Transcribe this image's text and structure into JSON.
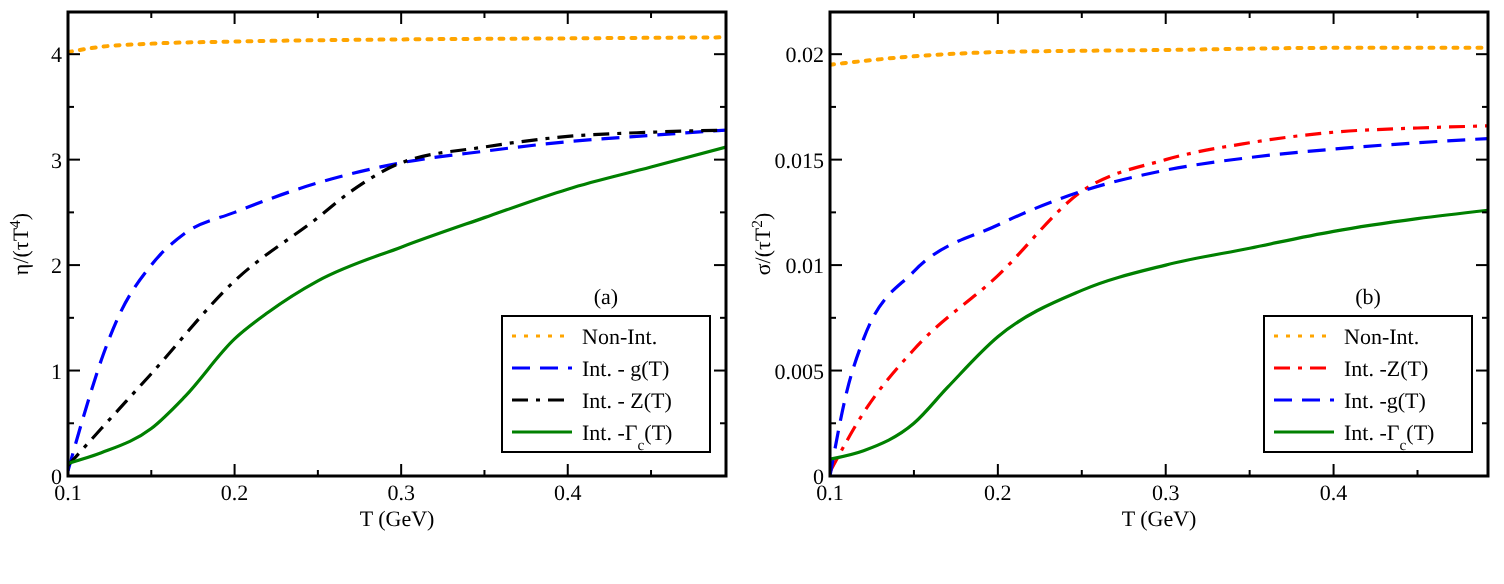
{
  "chart_data": [
    {
      "type": "line",
      "xlabel": "T (GeV)",
      "ylabel": "η/(τT$^{4}$)",
      "annotations": [
        "(a)"
      ],
      "legend": "bottom right",
      "grid": false,
      "xlim": [
        0.1,
        0.495
      ],
      "ylim": [
        0,
        4.4
      ],
      "xticks": [
        0.1,
        {
          "value": 0.15,
          "label": null
        },
        0.2,
        {
          "value": 0.25,
          "label": null
        },
        0.3,
        {
          "value": 0.35,
          "label": null
        },
        0.4,
        {
          "value": 0.45,
          "label": null
        }
      ],
      "yticks": [
        0,
        {
          "value": 0.5,
          "label": null
        },
        1,
        {
          "value": 1.5,
          "label": null
        },
        2,
        {
          "value": 2.5,
          "label": null
        },
        3,
        {
          "value": 3.5,
          "label": null
        },
        4
      ],
      "series": [
        {
          "name": "Non-Int.",
          "color": "#ffa500",
          "line_style": "dotted",
          "x": [
            0.1,
            0.12,
            0.15,
            0.2,
            0.3,
            0.4,
            0.495
          ],
          "values": [
            4.02,
            4.07,
            4.1,
            4.12,
            4.14,
            4.15,
            4.16
          ]
        },
        {
          "name": "Int. - g(T)",
          "color": "#0000ff",
          "line_style": "dashed",
          "x": [
            0.1,
            0.11,
            0.12,
            0.13,
            0.15,
            0.17,
            0.2,
            0.25,
            0.3,
            0.35,
            0.4,
            0.45,
            0.495
          ],
          "values": [
            0.05,
            0.6,
            1.1,
            1.5,
            2.0,
            2.3,
            2.5,
            2.78,
            2.97,
            3.08,
            3.17,
            3.23,
            3.28
          ]
        },
        {
          "name": "Int. - Z(T)",
          "color": "#000000",
          "line_style": "dashdot",
          "x": [
            0.1,
            0.12,
            0.15,
            0.2,
            0.25,
            0.27,
            0.3,
            0.35,
            0.4,
            0.45,
            0.495
          ],
          "values": [
            0.1,
            0.45,
            0.97,
            1.85,
            2.45,
            2.7,
            2.97,
            3.12,
            3.22,
            3.26,
            3.28
          ]
        },
        {
          "name": "Int. -Γ$_{c}$(T)",
          "color": "#008000",
          "line_style": "solid",
          "x": [
            0.1,
            0.12,
            0.15,
            0.17,
            0.2,
            0.22,
            0.25,
            0.3,
            0.35,
            0.4,
            0.45,
            0.495
          ],
          "values": [
            0.12,
            0.22,
            0.45,
            0.75,
            1.3,
            1.55,
            1.85,
            2.17,
            2.45,
            2.72,
            2.93,
            3.12
          ]
        }
      ]
    },
    {
      "type": "line",
      "xlabel": "T (GeV)",
      "ylabel": "σ/(τT$^{2}$)",
      "annotations": [
        "(b)"
      ],
      "legend": "bottom right",
      "grid": false,
      "xlim": [
        0.1,
        0.492
      ],
      "ylim": [
        0,
        0.022
      ],
      "xticks": [
        0.1,
        {
          "value": 0.15,
          "label": null
        },
        0.2,
        {
          "value": 0.25,
          "label": null
        },
        0.3,
        {
          "value": 0.35,
          "label": null
        },
        0.4,
        {
          "value": 0.45,
          "label": null
        }
      ],
      "yticks": [
        0,
        {
          "value": 0.0025,
          "label": null
        },
        0.005,
        {
          "value": 0.0075,
          "label": null
        },
        0.01,
        {
          "value": 0.0125,
          "label": null
        },
        0.015,
        {
          "value": 0.0175,
          "label": null
        },
        0.02
      ],
      "series": [
        {
          "name": "Non-Int.",
          "color": "#ffa500",
          "line_style": "dotted",
          "x": [
            0.1,
            0.15,
            0.2,
            0.3,
            0.4,
            0.492
          ],
          "values": [
            0.0195,
            0.0199,
            0.0201,
            0.0202,
            0.0203,
            0.0203
          ]
        },
        {
          "name": "Int. -Z(T)",
          "color": "#ff0000",
          "line_style": "dashdot",
          "x": [
            0.1,
            0.12,
            0.15,
            0.2,
            0.25,
            0.3,
            0.35,
            0.4,
            0.45,
            0.492
          ],
          "values": [
            0.0002,
            0.003,
            0.006,
            0.0095,
            0.0135,
            0.015,
            0.0158,
            0.0163,
            0.0165,
            0.0166
          ]
        },
        {
          "name": "Int. -g(T)",
          "color": "#0000ff",
          "line_style": "dashed",
          "x": [
            0.1,
            0.11,
            0.12,
            0.15,
            0.2,
            0.25,
            0.3,
            0.35,
            0.4,
            0.45,
            0.492
          ],
          "values": [
            0,
            0.004,
            0.0065,
            0.0097,
            0.0119,
            0.0135,
            0.0145,
            0.0151,
            0.0155,
            0.0158,
            0.016
          ]
        },
        {
          "name": "Int. -Γ$_{c}$(T)",
          "color": "#008000",
          "line_style": "solid",
          "x": [
            0.1,
            0.12,
            0.15,
            0.17,
            0.2,
            0.25,
            0.3,
            0.35,
            0.4,
            0.45,
            0.492
          ],
          "values": [
            0.0008,
            0.0012,
            0.0025,
            0.0042,
            0.0066,
            0.0088,
            0.01,
            0.0108,
            0.0116,
            0.0122,
            0.0126
          ]
        }
      ]
    }
  ]
}
